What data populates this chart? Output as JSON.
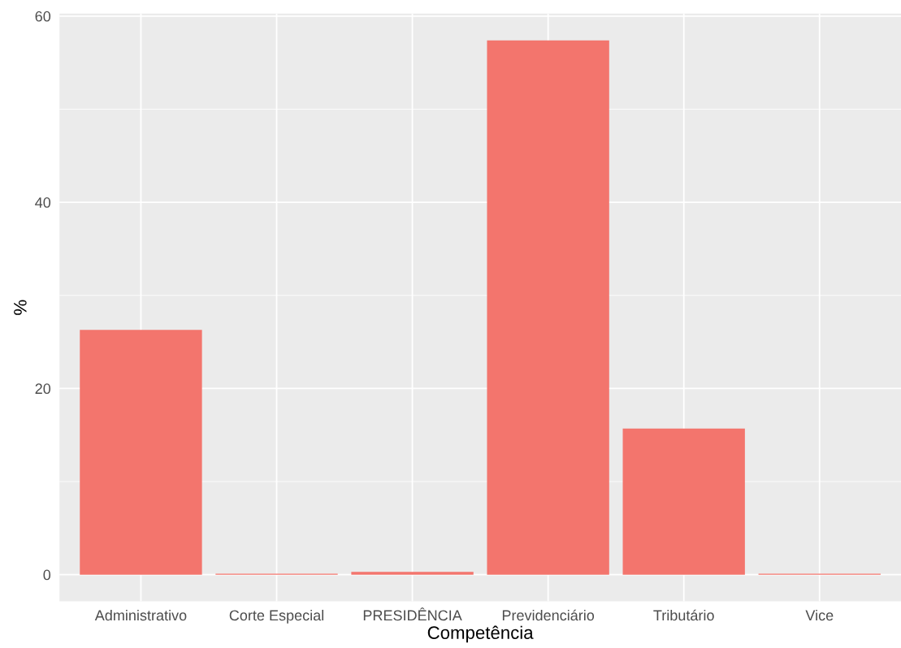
{
  "chart_data": {
    "type": "bar",
    "xlabel": "Competência",
    "ylabel": "%",
    "categories": [
      "Administrativo",
      "Corte Especial",
      "PRESIDÊNCIA",
      "Previdenciário",
      "Tributário",
      "Vice"
    ],
    "values": [
      26.3,
      0.1,
      0.3,
      57.4,
      15.7,
      0.1
    ],
    "color": "#f3756d",
    "ylim": [
      -2.87,
      60.27
    ],
    "yticks": [
      0,
      20,
      40,
      60
    ],
    "grid": true
  }
}
